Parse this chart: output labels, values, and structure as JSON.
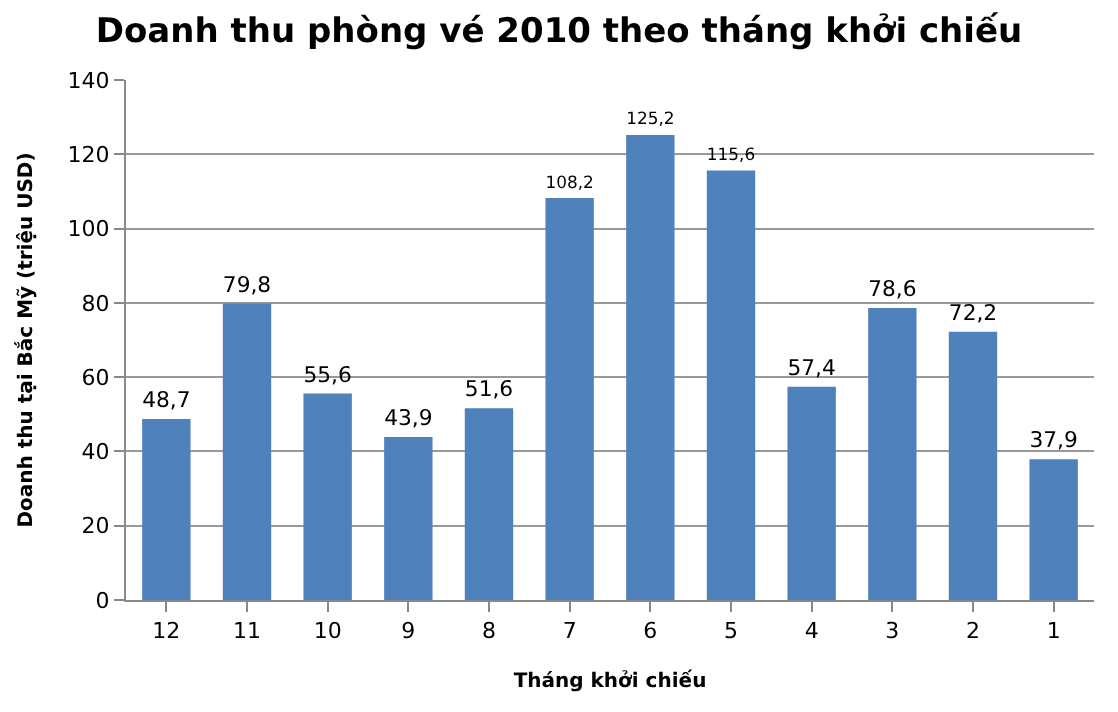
{
  "chart_data": {
    "type": "bar",
    "title": "Doanh thu phòng vé 2010 theo tháng khởi chiếu",
    "xlabel": "Tháng khởi chiếu",
    "ylabel": "Doanh thu tại Bắc Mỹ (triệu USD)",
    "categories": [
      "12",
      "11",
      "10",
      "9",
      "8",
      "7",
      "6",
      "5",
      "4",
      "3",
      "2",
      "1"
    ],
    "values": [
      48.7,
      79.8,
      55.6,
      43.9,
      51.6,
      108.2,
      125.2,
      115.6,
      57.4,
      78.6,
      72.2,
      37.9
    ],
    "value_labels": [
      "48,7",
      "79,8",
      "55,6",
      "43,9",
      "51,6",
      "108,2",
      "125,2",
      "115,6",
      "57,4",
      "78,6",
      "72,2",
      "37,9"
    ],
    "color": "#4f81bd",
    "ylim": [
      0,
      140
    ],
    "yticks": [
      0,
      20,
      40,
      60,
      80,
      100,
      120,
      140
    ],
    "grid": "y",
    "legend": false
  }
}
